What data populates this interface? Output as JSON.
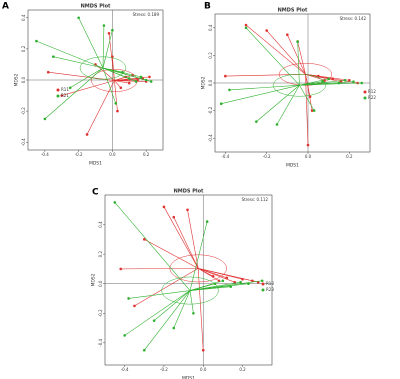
{
  "chart_data": [
    {
      "type": "scatter",
      "panel": "A",
      "title": "NMDS Plot",
      "annotation": "Stress: 0.189",
      "xlabel": "MDS1",
      "ylabel": "MDS2",
      "xlim": [
        -0.5,
        0.3
      ],
      "ylim": [
        -0.45,
        0.45
      ],
      "xticks": [
        -0.4,
        -0.2,
        {
          "value": 0,
          "label": "0.0"
        },
        0.2
      ],
      "yticks": [
        -0.4,
        -0.2,
        {
          "value": 0,
          "label": "0.0"
        },
        0.2,
        0.4
      ],
      "series": [
        {
          "name": "R11",
          "color": "#e03030",
          "x": [
            -0.38,
            -0.3,
            -0.15,
            -0.02,
            0.0,
            0.05,
            0.08,
            0.1,
            0.12,
            0.15,
            0.18,
            0.2,
            0.22,
            -0.1,
            0.03
          ],
          "y": [
            0.05,
            -0.1,
            -0.35,
            0.3,
            0.15,
            -0.05,
            0.02,
            -0.02,
            0.03,
            0.0,
            0.01,
            -0.01,
            0.02,
            0.1,
            -0.2
          ]
        },
        {
          "name": "R21",
          "color": "#2db02d",
          "x": [
            -0.45,
            -0.4,
            -0.35,
            -0.25,
            -0.05,
            0.0,
            0.02,
            0.1,
            0.14,
            0.17,
            0.2,
            0.23,
            0.06,
            -0.2
          ],
          "y": [
            0.25,
            -0.25,
            0.15,
            -0.05,
            0.35,
            0.32,
            -0.15,
            0.01,
            -0.01,
            0.02,
            0.0,
            -0.01,
            0.05,
            0.4
          ]
        }
      ]
    },
    {
      "type": "scatter",
      "panel": "B",
      "title": "NMDS Plot",
      "annotation": "Stress: 0.142",
      "xlabel": "MDS1",
      "ylabel": "MDS2",
      "xlim": [
        -0.45,
        0.3
      ],
      "ylim": [
        -0.5,
        0.5
      ],
      "xticks": [
        -0.4,
        -0.2,
        {
          "value": 0,
          "label": "0.0"
        },
        0.2
      ],
      "yticks": [
        -0.4,
        -0.2,
        {
          "value": 0,
          "label": "0.0"
        },
        0.2,
        0.4
      ],
      "series": [
        {
          "name": "R12",
          "color": "#e03030",
          "x": [
            -0.4,
            -0.3,
            -0.1,
            -0.05,
            0.0,
            0.02,
            0.05,
            0.08,
            0.12,
            0.16,
            0.2,
            0.24,
            0.01,
            -0.2
          ],
          "y": [
            0.05,
            0.42,
            0.35,
            0.3,
            -0.45,
            -0.2,
            0.05,
            0.02,
            0.03,
            0.01,
            0.02,
            0.0,
            -0.1,
            0.38
          ]
        },
        {
          "name": "R22",
          "color": "#2db02d",
          "x": [
            -0.42,
            -0.38,
            -0.25,
            -0.15,
            -0.05,
            0.03,
            0.07,
            0.1,
            0.15,
            0.18,
            0.22,
            0.26,
            -0.3
          ],
          "y": [
            -0.15,
            -0.05,
            -0.28,
            -0.3,
            0.3,
            -0.2,
            0.01,
            0.03,
            0.0,
            0.02,
            0.01,
            0.0,
            0.4
          ]
        }
      ]
    },
    {
      "type": "scatter",
      "panel": "C",
      "title": "NMDS Plot",
      "annotation": "Stress: 0.112",
      "xlabel": "MDS1",
      "ylabel": "MDS2",
      "xlim": [
        -0.5,
        0.35
      ],
      "ylim": [
        -0.55,
        0.6
      ],
      "xticks": [
        -0.4,
        -0.2,
        {
          "value": 0,
          "label": "0.0"
        },
        0.2
      ],
      "yticks": [
        -0.4,
        -0.2,
        {
          "value": 0,
          "label": "0.0"
        },
        0.2,
        0.4
      ],
      "series": [
        {
          "name": "R13",
          "color": "#e03030",
          "x": [
            -0.42,
            -0.35,
            -0.2,
            -0.15,
            -0.08,
            0.0,
            0.05,
            0.08,
            0.12,
            0.16,
            0.2,
            0.25,
            0.28,
            -0.3
          ],
          "y": [
            0.1,
            -0.15,
            0.52,
            0.45,
            0.5,
            -0.45,
            0.05,
            0.02,
            0.04,
            0.01,
            0.03,
            0.02,
            0.01,
            0.3
          ]
        },
        {
          "name": "R23",
          "color": "#2db02d",
          "x": [
            -0.45,
            -0.4,
            -0.38,
            -0.3,
            -0.25,
            -0.15,
            0.02,
            0.06,
            0.1,
            0.14,
            0.19,
            0.23,
            0.3,
            -0.05
          ],
          "y": [
            0.55,
            -0.35,
            -0.1,
            -0.45,
            -0.25,
            -0.3,
            0.42,
            0.0,
            0.02,
            -0.02,
            0.01,
            0.0,
            0.02,
            -0.2
          ]
        }
      ]
    }
  ]
}
